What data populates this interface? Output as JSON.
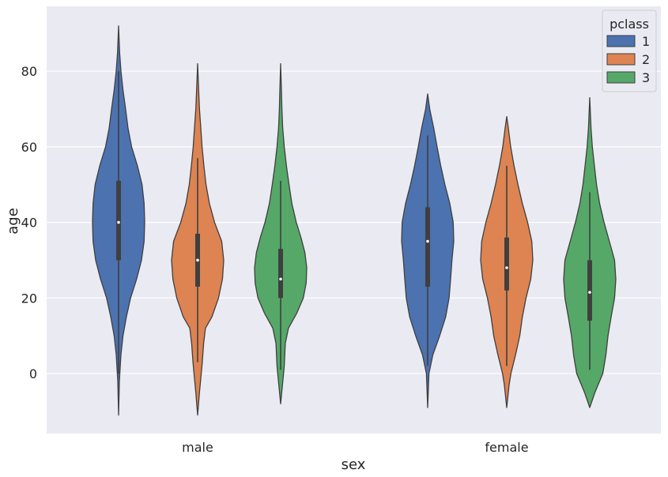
{
  "chart_data": {
    "type": "violin",
    "title": "",
    "xlabel": "sex",
    "ylabel": "age",
    "categories": [
      "male",
      "female"
    ],
    "ylim": [
      -16,
      97
    ],
    "yticks": [
      0,
      20,
      40,
      60,
      80
    ],
    "grid": true,
    "legend": {
      "title": "pclass",
      "placement": "top-right",
      "entries": [
        "1",
        "2",
        "3"
      ]
    },
    "colors": {
      "1": "#4c72b0",
      "2": "#dd8452",
      "3": "#55a868"
    },
    "series": [
      {
        "name": "1",
        "violins": [
          {
            "category": "male",
            "ext_min": -11,
            "ext_max": 92,
            "median": 40,
            "q1": 30,
            "q3": 51,
            "whisker_low": 0,
            "whisker_high": 80,
            "profile": [
              [
                -11,
                0.0
              ],
              [
                -2,
                0.03
              ],
              [
                5,
                0.09
              ],
              [
                10,
                0.17
              ],
              [
                15,
                0.3
              ],
              [
                20,
                0.46
              ],
              [
                25,
                0.69
              ],
              [
                30,
                0.88
              ],
              [
                35,
                0.98
              ],
              [
                40,
                1.0
              ],
              [
                45,
                0.98
              ],
              [
                50,
                0.9
              ],
              [
                55,
                0.72
              ],
              [
                60,
                0.5
              ],
              [
                65,
                0.36
              ],
              [
                70,
                0.27
              ],
              [
                75,
                0.17
              ],
              [
                80,
                0.09
              ],
              [
                85,
                0.04
              ],
              [
                92,
                0.0
              ]
            ]
          },
          {
            "category": "female",
            "ext_min": -9,
            "ext_max": 74,
            "median": 35,
            "q1": 23,
            "q3": 44,
            "whisker_low": 2,
            "whisker_high": 63,
            "profile": [
              [
                -9,
                0.0
              ],
              [
                0,
                0.05
              ],
              [
                5,
                0.2
              ],
              [
                10,
                0.46
              ],
              [
                15,
                0.69
              ],
              [
                20,
                0.82
              ],
              [
                25,
                0.88
              ],
              [
                30,
                0.93
              ],
              [
                35,
                1.0
              ],
              [
                40,
                0.98
              ],
              [
                45,
                0.85
              ],
              [
                50,
                0.66
              ],
              [
                55,
                0.5
              ],
              [
                60,
                0.36
              ],
              [
                65,
                0.23
              ],
              [
                70,
                0.08
              ],
              [
                74,
                0.0
              ]
            ]
          }
        ]
      },
      {
        "name": "2",
        "violins": [
          {
            "category": "male",
            "ext_min": -11,
            "ext_max": 82,
            "median": 30,
            "q1": 23,
            "q3": 37,
            "whisker_low": 3,
            "whisker_high": 57,
            "profile": [
              [
                -11,
                0.0
              ],
              [
                -5,
                0.07
              ],
              [
                0,
                0.14
              ],
              [
                3,
                0.18
              ],
              [
                8,
                0.23
              ],
              [
                12,
                0.3
              ],
              [
                15,
                0.55
              ],
              [
                20,
                0.8
              ],
              [
                25,
                0.95
              ],
              [
                30,
                1.0
              ],
              [
                35,
                0.92
              ],
              [
                40,
                0.65
              ],
              [
                45,
                0.45
              ],
              [
                50,
                0.32
              ],
              [
                55,
                0.24
              ],
              [
                60,
                0.17
              ],
              [
                65,
                0.12
              ],
              [
                70,
                0.07
              ],
              [
                75,
                0.04
              ],
              [
                82,
                0.0
              ]
            ]
          },
          {
            "category": "female",
            "ext_min": -9,
            "ext_max": 68,
            "median": 28,
            "q1": 22,
            "q3": 36,
            "whisker_low": 2,
            "whisker_high": 55,
            "profile": [
              [
                -9,
                0.0
              ],
              [
                -3,
                0.09
              ],
              [
                0,
                0.16
              ],
              [
                5,
                0.34
              ],
              [
                10,
                0.5
              ],
              [
                15,
                0.6
              ],
              [
                20,
                0.74
              ],
              [
                25,
                0.92
              ],
              [
                30,
                1.0
              ],
              [
                35,
                0.96
              ],
              [
                40,
                0.8
              ],
              [
                45,
                0.6
              ],
              [
                50,
                0.43
              ],
              [
                55,
                0.28
              ],
              [
                60,
                0.15
              ],
              [
                65,
                0.06
              ],
              [
                68,
                0.0
              ]
            ]
          }
        ]
      },
      {
        "name": "3",
        "violins": [
          {
            "category": "male",
            "ext_min": -8,
            "ext_max": 82,
            "median": 25,
            "q1": 20,
            "q3": 33,
            "whisker_low": 1,
            "whisker_high": 51,
            "profile": [
              [
                -8,
                0.0
              ],
              [
                -3,
                0.07
              ],
              [
                2,
                0.14
              ],
              [
                8,
                0.18
              ],
              [
                12,
                0.3
              ],
              [
                16,
                0.62
              ],
              [
                20,
                0.87
              ],
              [
                24,
                0.98
              ],
              [
                28,
                1.0
              ],
              [
                32,
                0.93
              ],
              [
                36,
                0.78
              ],
              [
                40,
                0.6
              ],
              [
                45,
                0.43
              ],
              [
                50,
                0.32
              ],
              [
                55,
                0.22
              ],
              [
                60,
                0.14
              ],
              [
                65,
                0.08
              ],
              [
                70,
                0.05
              ],
              [
                75,
                0.03
              ],
              [
                82,
                0.0
              ]
            ]
          },
          {
            "category": "female",
            "ext_min": -9,
            "ext_max": 73,
            "median": 21.5,
            "q1": 14,
            "q3": 30,
            "whisker_low": 1,
            "whisker_high": 48,
            "profile": [
              [
                -9,
                0.0
              ],
              [
                -5,
                0.2
              ],
              [
                0,
                0.5
              ],
              [
                5,
                0.62
              ],
              [
                10,
                0.7
              ],
              [
                15,
                0.82
              ],
              [
                20,
                0.95
              ],
              [
                25,
                1.0
              ],
              [
                30,
                0.95
              ],
              [
                35,
                0.75
              ],
              [
                40,
                0.55
              ],
              [
                45,
                0.38
              ],
              [
                50,
                0.26
              ],
              [
                55,
                0.18
              ],
              [
                60,
                0.1
              ],
              [
                65,
                0.05
              ],
              [
                73,
                0.0
              ]
            ]
          }
        ]
      }
    ]
  }
}
